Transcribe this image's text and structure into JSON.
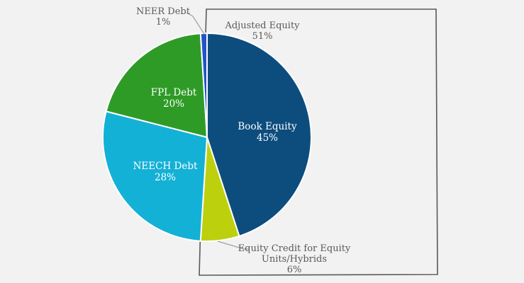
{
  "colors": {
    "background": "#f2f2f2",
    "outside_label_text": "#595959",
    "annotation_box_border": "#58595b",
    "leader_line": "#a0a0a0",
    "inside_label_text": "#ffffff"
  },
  "chart_data": {
    "type": "pie",
    "title": "",
    "direction": "clockwise",
    "start_angle_deg": 0,
    "legend": "none",
    "slices": [
      {
        "label": "Book Equity",
        "pct_text": "45%",
        "value": 45,
        "color": "#0d4d7e",
        "label_inside": true
      },
      {
        "label": "Equity Credit for Equity Units/Hybrids",
        "label_lines": [
          "Equity Credit for Equity",
          "Units/Hybrids"
        ],
        "pct_text": "6%",
        "value": 6,
        "color": "#bdd00e",
        "label_inside": false
      },
      {
        "label": "NEECH Debt",
        "pct_text": "28%",
        "value": 28,
        "color": "#14b1d6",
        "label_inside": true
      },
      {
        "label": "FPL Debt",
        "pct_text": "20%",
        "value": 20,
        "color": "#2e9b26",
        "label_inside": true
      },
      {
        "label": "NEER Debt",
        "pct_text": "1%",
        "value": 1,
        "color": "#2253c8",
        "label_inside": false
      }
    ],
    "annotation": {
      "label": "Adjusted Equity",
      "pct_text": "51%",
      "note": "box groups Book Equity 45% + Equity Credit 6%"
    }
  }
}
